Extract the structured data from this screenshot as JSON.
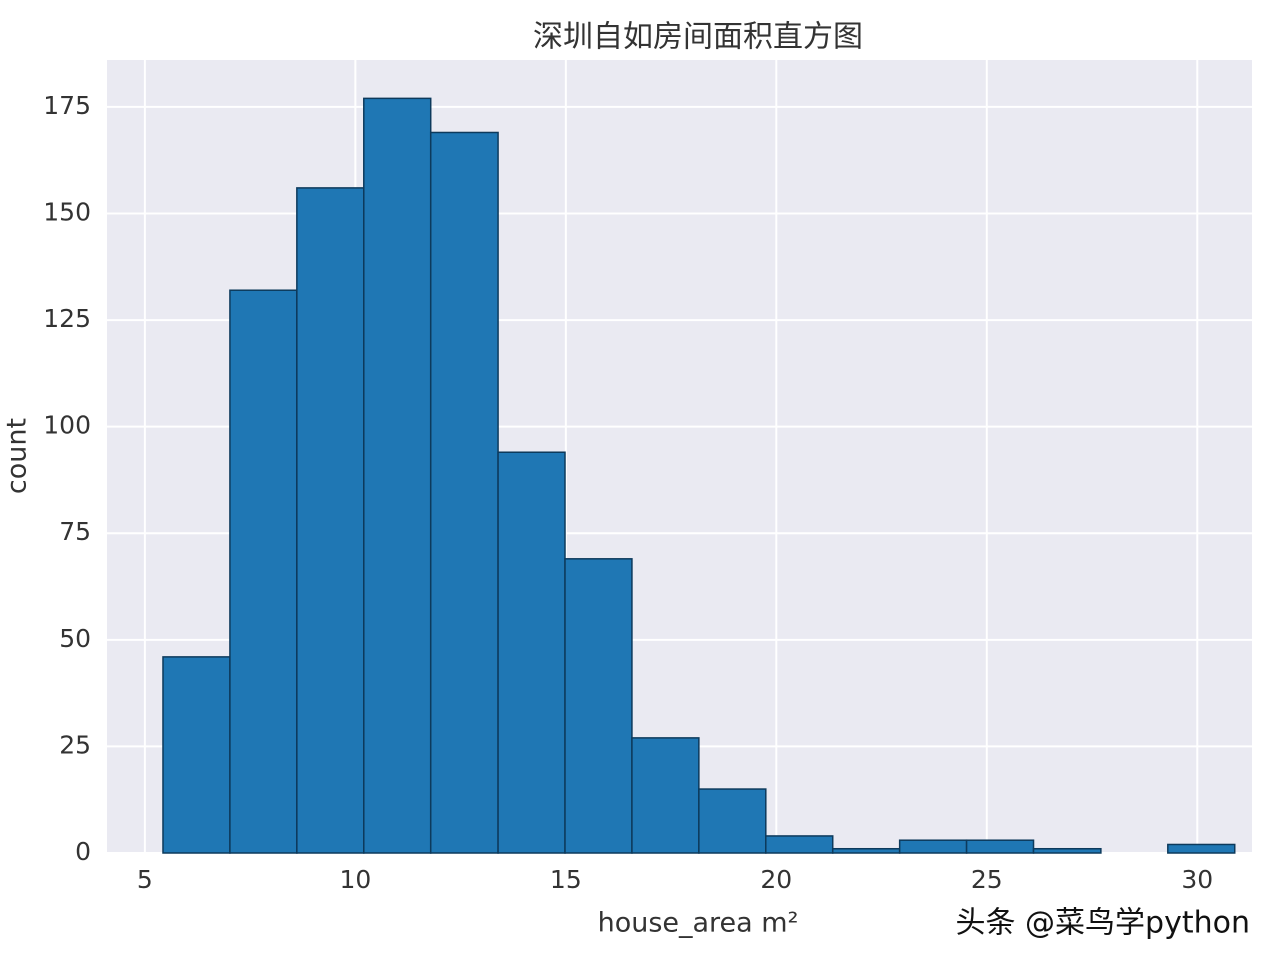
{
  "chart_data": {
    "type": "histogram",
    "title": "深圳自如房间面积直方图",
    "xlabel": "house_area m²",
    "ylabel": "count",
    "watermark": "头条 @菜鸟学python",
    "bins": [
      5.43,
      7.02,
      8.61,
      10.2,
      11.79,
      13.39,
      14.98,
      16.57,
      18.16,
      19.75,
      21.34,
      22.93,
      24.52,
      26.11,
      27.71,
      29.3,
      30.89
    ],
    "values": [
      46,
      132,
      156,
      177,
      169,
      94,
      69,
      27,
      15,
      4,
      1,
      3,
      3,
      1,
      0,
      2
    ],
    "color": "#1f77b4",
    "xlim": [
      4.1,
      31.3
    ],
    "ylim": [
      0,
      186
    ],
    "xticks": [
      5,
      10,
      15,
      20,
      25,
      30
    ],
    "yticks": [
      0,
      25,
      50,
      75,
      100,
      125,
      150,
      175
    ],
    "grid": true
  }
}
